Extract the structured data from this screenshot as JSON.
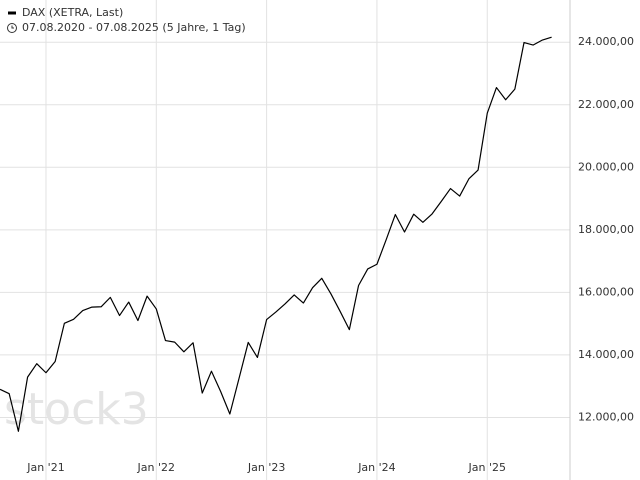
{
  "chart_data": {
    "type": "line",
    "subtitle": "07.08.2020 - 07.08.2025  (5 Jahre, 1 Tag)",
    "watermark": "stock3",
    "x": [
      "2020-08",
      "2020-09",
      "2020-10",
      "2020-11",
      "2020-12",
      "2021-01",
      "2021-02",
      "2021-03",
      "2021-04",
      "2021-05",
      "2021-06",
      "2021-07",
      "2021-08",
      "2021-09",
      "2021-10",
      "2021-11",
      "2021-12",
      "2022-01",
      "2022-02",
      "2022-03",
      "2022-04",
      "2022-05",
      "2022-06",
      "2022-07",
      "2022-08",
      "2022-09",
      "2022-10",
      "2022-11",
      "2022-12",
      "2023-01",
      "2023-02",
      "2023-03",
      "2023-04",
      "2023-05",
      "2023-06",
      "2023-07",
      "2023-08",
      "2023-09",
      "2023-10",
      "2023-11",
      "2023-12",
      "2024-01",
      "2024-02",
      "2024-03",
      "2024-04",
      "2024-05",
      "2024-06",
      "2024-07",
      "2024-08",
      "2024-09",
      "2024-10",
      "2024-11",
      "2024-12",
      "2025-01",
      "2025-02",
      "2025-03",
      "2025-04",
      "2025-05",
      "2025-06",
      "2025-07",
      "2025-08"
    ],
    "series": [
      {
        "name": "DAX (XETRA, Last)",
        "color": "#000000",
        "values": [
          12900,
          12760,
          11560,
          13290,
          13720,
          13430,
          13790,
          15010,
          15140,
          15420,
          15530,
          15540,
          15840,
          15260,
          15690,
          15100,
          15880,
          15470,
          14460,
          14410,
          14100,
          14390,
          12780,
          13480,
          12830,
          12110,
          13250,
          14400,
          13920,
          15130,
          15370,
          15630,
          15920,
          15660,
          16150,
          16450,
          15950,
          15390,
          14810,
          16220,
          16750,
          16900,
          17680,
          18490,
          17930,
          18500,
          18240,
          18510,
          18910,
          19320,
          19080,
          19630,
          19910,
          21730,
          22550,
          22160,
          22500,
          23990,
          23910,
          24070,
          24160
        ]
      }
    ],
    "xlim": [
      "2020-08",
      "2025-10"
    ],
    "xticks": [
      {
        "value": "2021-01",
        "label": "Jan '21"
      },
      {
        "value": "2022-01",
        "label": "Jan '22"
      },
      {
        "value": "2023-01",
        "label": "Jan '23"
      },
      {
        "value": "2024-01",
        "label": "Jan '24"
      },
      {
        "value": "2025-01",
        "label": "Jan '25"
      }
    ],
    "ylim": [
      10800,
      25350
    ],
    "yticks": [
      {
        "value": 12000,
        "label": "12.000,00"
      },
      {
        "value": 14000,
        "label": "14.000,00"
      },
      {
        "value": 16000,
        "label": "16.000,00"
      },
      {
        "value": 18000,
        "label": "18.000,00"
      },
      {
        "value": 20000,
        "label": "20.000,00"
      },
      {
        "value": 22000,
        "label": "22.000,00"
      },
      {
        "value": 24000,
        "label": "24.000,00"
      }
    ],
    "grid": true
  }
}
